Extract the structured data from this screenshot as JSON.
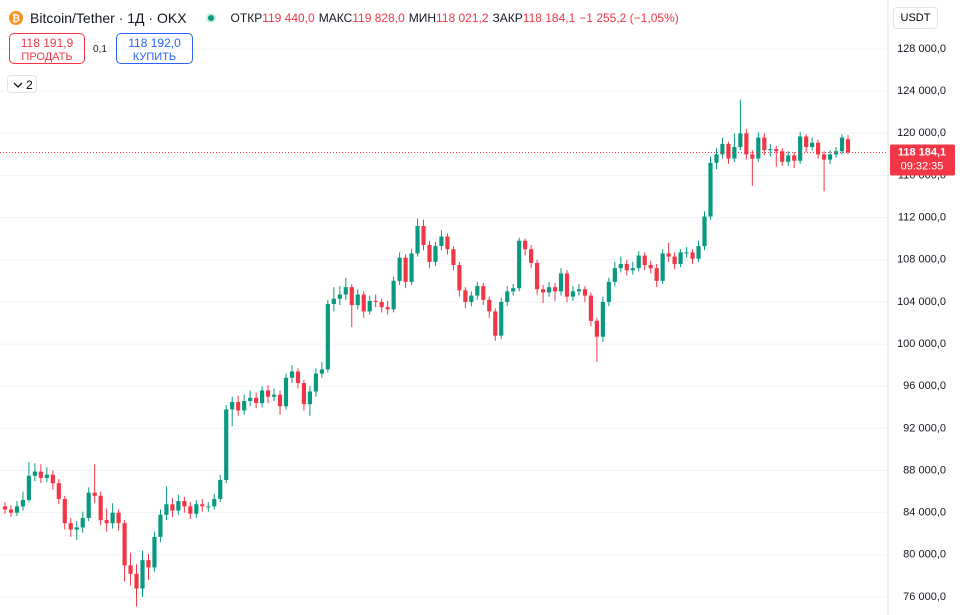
{
  "header": {
    "symbol": "Bitcoin/Tether · 1Д · OKX",
    "open_label": "ОТКР",
    "open": "119 440,0",
    "high_label": "МАКС",
    "high": "119 828,0",
    "low_label": "МИН",
    "low": "118 021,2",
    "close_label": "ЗАКР",
    "close": "118 184,1",
    "change": "−1 255,2 (−1,05%)",
    "sell_price": "118 191,9",
    "sell": "ПРОДАТЬ",
    "spread": "0,1",
    "buy_price": "118 192,0",
    "buy": "КУПИТЬ",
    "indicators": "2",
    "currency": "USDT"
  },
  "chart_data": {
    "type": "candlestick",
    "up_color": "#089981",
    "down_color": "#f23645",
    "open": [
      84600,
      84300,
      84000,
      84600,
      85200,
      87500,
      87900,
      87300,
      87600,
      86800,
      85300,
      83000,
      82400,
      82600,
      83500,
      85900,
      85600,
      83300,
      83000,
      84000,
      83000,
      79000,
      78200,
      76800,
      79500,
      78800,
      81700,
      83800,
      84800,
      84200,
      85100,
      84600,
      83900,
      84800,
      84600,
      84600,
      85300,
      87100,
      93800,
      94500,
      93700,
      94600,
      94900,
      94400,
      95600,
      95000,
      95200,
      94100,
      96800,
      97400,
      96300,
      94300,
      95500,
      97200,
      97600,
      103800,
      104300,
      104700,
      105400,
      103700,
      104700,
      103100,
      104100,
      104000,
      103500,
      103300,
      106000,
      108200,
      105900,
      108600,
      111200,
      109400,
      107800,
      109300,
      110200,
      109000,
      107500,
      105100,
      104000,
      104600,
      105500,
      104200,
      103100,
      100800,
      104000,
      105000,
      105300,
      109800,
      109000,
      107700,
      105200,
      104900,
      105400,
      105000,
      106700,
      104500,
      105000,
      105200,
      104600,
      102200,
      100700,
      104000,
      105900,
      107200,
      107600,
      107000,
      107200,
      108400,
      107500,
      107200,
      106000,
      108600,
      108300,
      107600,
      108700,
      108700,
      108100,
      109300,
      112100,
      117200,
      118000,
      119000,
      117600,
      118700,
      120000,
      118000,
      117600,
      119600,
      118400,
      118500,
      118300,
      117300,
      117900,
      117400,
      119700,
      118700,
      119100,
      118000,
      117500,
      118000,
      118300,
      119440
    ],
    "high": [
      85000,
      84700,
      85100,
      86000,
      88800,
      88700,
      88600,
      88300,
      88000,
      87200,
      85600,
      83500,
      83200,
      84100,
      86400,
      88600,
      86000,
      84400,
      84900,
      84300,
      83300,
      80200,
      79100,
      80400,
      80100,
      82200,
      84300,
      86500,
      85400,
      85700,
      85500,
      85000,
      85200,
      85300,
      85000,
      85800,
      87600,
      94200,
      95000,
      95100,
      95200,
      95600,
      95400,
      96000,
      96100,
      95800,
      95600,
      97200,
      98000,
      97700,
      96600,
      96000,
      97700,
      98300,
      104200,
      105400,
      105500,
      106300,
      105700,
      105200,
      105000,
      104600,
      104700,
      104300,
      104100,
      106400,
      108700,
      108500,
      109000,
      111900,
      111800,
      109800,
      109700,
      110800,
      110500,
      109300,
      107800,
      105400,
      105000,
      105900,
      105800,
      104500,
      103400,
      104400,
      105500,
      105700,
      110100,
      110000,
      109400,
      108000,
      105600,
      105900,
      105800,
      107200,
      107000,
      105500,
      105700,
      105500,
      104900,
      102500,
      104500,
      106300,
      107800,
      108300,
      108000,
      107800,
      108800,
      108700,
      107900,
      107600,
      109000,
      109600,
      108700,
      109000,
      109200,
      109000,
      109800,
      112600,
      117800,
      118600,
      119600,
      119200,
      120000,
      123200,
      120400,
      118400,
      120100,
      120000,
      119000,
      118800,
      118600,
      118300,
      118200,
      120100,
      119900,
      119600,
      119400,
      118300,
      118400,
      118700,
      119900,
      119828
    ],
    "low": [
      83900,
      83600,
      83700,
      84200,
      85000,
      87000,
      86800,
      86900,
      86200,
      84800,
      82400,
      81700,
      81400,
      82100,
      83200,
      84900,
      82800,
      82200,
      82500,
      82300,
      77500,
      77100,
      75100,
      76000,
      77600,
      78400,
      81200,
      83300,
      83600,
      83800,
      84000,
      83400,
      83500,
      84100,
      84100,
      84300,
      85000,
      86800,
      92200,
      93200,
      93300,
      94100,
      93900,
      94000,
      94400,
      94600,
      93300,
      93800,
      96300,
      95800,
      93700,
      93200,
      95000,
      96800,
      97300,
      103100,
      103700,
      104200,
      101600,
      103300,
      102500,
      102800,
      103500,
      103000,
      102800,
      103000,
      105600,
      105300,
      105600,
      108300,
      108900,
      107200,
      107400,
      108900,
      108500,
      107000,
      104500,
      103400,
      103600,
      104200,
      103700,
      102500,
      100300,
      100500,
      103600,
      104600,
      105000,
      108400,
      107200,
      104700,
      103900,
      104500,
      104100,
      104600,
      104000,
      104100,
      104600,
      104000,
      101700,
      98300,
      100200,
      103600,
      105500,
      106800,
      106500,
      106600,
      106900,
      107000,
      106700,
      105400,
      105700,
      107800,
      107100,
      107300,
      108200,
      107600,
      107800,
      108900,
      111800,
      116600,
      117600,
      117100,
      117300,
      118400,
      117500,
      115000,
      117300,
      117900,
      117800,
      116800,
      116900,
      116900,
      116700,
      117100,
      118200,
      118400,
      117600,
      114500,
      117100,
      117700,
      118000,
      118021.2
    ],
    "close": [
      84300,
      84000,
      84600,
      85200,
      87500,
      87900,
      87300,
      87600,
      86800,
      85300,
      83000,
      82400,
      82600,
      83500,
      85900,
      85600,
      83300,
      83000,
      84000,
      83000,
      79000,
      78200,
      76800,
      79500,
      78800,
      81700,
      83800,
      84800,
      84200,
      85100,
      84600,
      83900,
      84800,
      84600,
      84600,
      85300,
      87100,
      93800,
      94500,
      93700,
      94600,
      94900,
      94400,
      95600,
      95000,
      95200,
      94100,
      96800,
      97400,
      96300,
      94300,
      95500,
      97200,
      97600,
      103800,
      104300,
      104700,
      105400,
      103700,
      104700,
      103100,
      104100,
      104000,
      103500,
      103300,
      106000,
      108200,
      105900,
      108600,
      111200,
      109400,
      107800,
      109300,
      110200,
      109000,
      107500,
      105100,
      104000,
      104600,
      105500,
      104200,
      103100,
      100800,
      104000,
      105000,
      105300,
      109800,
      109000,
      107700,
      105200,
      104900,
      105400,
      105000,
      106700,
      104500,
      105000,
      105200,
      104600,
      102200,
      100700,
      104000,
      105900,
      107200,
      107600,
      107000,
      107200,
      108400,
      107500,
      107200,
      106000,
      108600,
      108300,
      107600,
      108700,
      108700,
      108100,
      109300,
      112100,
      117200,
      118000,
      119000,
      117600,
      118700,
      120000,
      118000,
      117600,
      119600,
      118400,
      118500,
      118300,
      117300,
      117900,
      117400,
      119700,
      118700,
      119100,
      118000,
      117500,
      118000,
      118300,
      119600,
      118184.1
    ],
    "last_price_label": "118 184,1",
    "countdown": "09:32:35",
    "ylim": [
      74290,
      132650
    ],
    "yticks": [
      {
        "value": 76000,
        "label": "76 000,0"
      },
      {
        "value": 80000,
        "label": "80 000,0"
      },
      {
        "value": 84000,
        "label": "84 000,0"
      },
      {
        "value": 88000,
        "label": "88 000,0"
      },
      {
        "value": 92000,
        "label": "92 000,0"
      },
      {
        "value": 96000,
        "label": "96 000,0"
      },
      {
        "value": 100000,
        "label": "100 000,0"
      },
      {
        "value": 104000,
        "label": "104 000,0"
      },
      {
        "value": 108000,
        "label": "108 000,0"
      },
      {
        "value": 112000,
        "label": "112 000,0"
      },
      {
        "value": 116000,
        "label": "116 000,0"
      },
      {
        "value": 120000,
        "label": "120 000,0"
      },
      {
        "value": 124000,
        "label": "124 000,0"
      },
      {
        "value": 128000,
        "label": "128 000,0"
      }
    ],
    "grid": true
  }
}
